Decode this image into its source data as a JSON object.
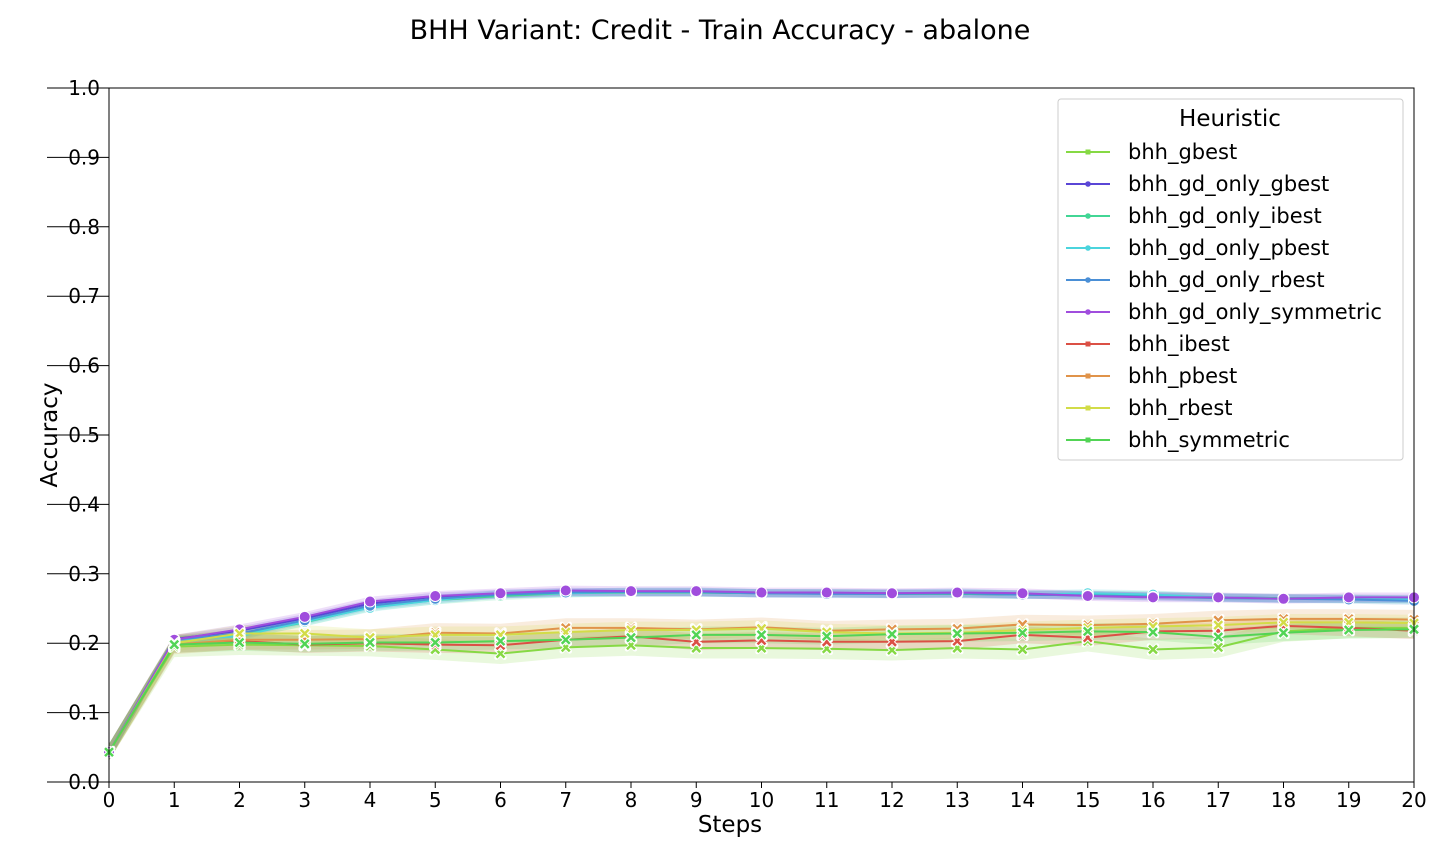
{
  "chart_data": {
    "type": "line",
    "title": "BHH Variant: Credit - Train Accuracy - abalone",
    "xlabel": "Steps",
    "ylabel": "Accuracy",
    "xlim": [
      0,
      20
    ],
    "ylim": [
      0.0,
      1.0
    ],
    "x": [
      0,
      1,
      2,
      3,
      4,
      5,
      6,
      7,
      8,
      9,
      10,
      11,
      12,
      13,
      14,
      15,
      16,
      17,
      18,
      19,
      20
    ],
    "x_ticks": [
      "0",
      "1",
      "2",
      "3",
      "4",
      "5",
      "6",
      "7",
      "8",
      "9",
      "10",
      "11",
      "12",
      "13",
      "14",
      "15",
      "16",
      "17",
      "18",
      "19",
      "20"
    ],
    "y_ticks": [
      "0.0",
      "0.1",
      "0.2",
      "0.3",
      "0.4",
      "0.5",
      "0.6",
      "0.7",
      "0.8",
      "0.9",
      "1.0"
    ],
    "grid": false,
    "legend": {
      "title": "Heuristic",
      "placement": "top-right"
    },
    "series": [
      {
        "name": "bhh_gbest",
        "color": "#86d944",
        "marker": "x",
        "band": 0.015,
        "values": [
          0.043,
          0.195,
          0.198,
          0.197,
          0.196,
          0.191,
          0.185,
          0.194,
          0.197,
          0.193,
          0.193,
          0.192,
          0.19,
          0.193,
          0.191,
          0.203,
          0.191,
          0.194,
          0.217,
          0.222,
          0.222
        ]
      },
      {
        "name": "bhh_gd_only_gbest",
        "color": "#5a46d6",
        "marker": "o",
        "band": 0.006,
        "values": [
          0.043,
          0.206,
          0.218,
          0.236,
          0.257,
          0.267,
          0.271,
          0.274,
          0.273,
          0.273,
          0.272,
          0.272,
          0.272,
          0.271,
          0.27,
          0.269,
          0.268,
          0.266,
          0.265,
          0.264,
          0.264
        ]
      },
      {
        "name": "bhh_gd_only_ibest",
        "color": "#42d695",
        "marker": "o",
        "band": 0.006,
        "values": [
          0.043,
          0.205,
          0.212,
          0.23,
          0.252,
          0.262,
          0.268,
          0.272,
          0.273,
          0.273,
          0.272,
          0.272,
          0.271,
          0.271,
          0.27,
          0.27,
          0.269,
          0.266,
          0.265,
          0.264,
          0.263
        ]
      },
      {
        "name": "bhh_gd_only_pbest",
        "color": "#4bd4dd",
        "marker": "o",
        "band": 0.006,
        "values": [
          0.043,
          0.205,
          0.21,
          0.231,
          0.251,
          0.262,
          0.271,
          0.272,
          0.274,
          0.274,
          0.272,
          0.272,
          0.271,
          0.273,
          0.27,
          0.272,
          0.27,
          0.266,
          0.264,
          0.264,
          0.263
        ]
      },
      {
        "name": "bhh_gd_only_rbest",
        "color": "#4a8fd6",
        "marker": "o",
        "band": 0.006,
        "values": [
          0.043,
          0.205,
          0.214,
          0.233,
          0.254,
          0.264,
          0.27,
          0.273,
          0.274,
          0.274,
          0.272,
          0.271,
          0.271,
          0.272,
          0.27,
          0.269,
          0.267,
          0.265,
          0.264,
          0.263,
          0.261
        ]
      },
      {
        "name": "bhh_gd_only_symmetric",
        "color": "#a04ddd",
        "marker": "o",
        "band": 0.007,
        "values": [
          0.043,
          0.205,
          0.22,
          0.238,
          0.26,
          0.268,
          0.272,
          0.276,
          0.275,
          0.275,
          0.273,
          0.273,
          0.272,
          0.273,
          0.272,
          0.268,
          0.266,
          0.266,
          0.264,
          0.266,
          0.266
        ]
      },
      {
        "name": "bhh_ibest",
        "color": "#db5045",
        "marker": "x",
        "band": 0.012,
        "values": [
          0.043,
          0.198,
          0.203,
          0.198,
          0.2,
          0.198,
          0.197,
          0.205,
          0.21,
          0.202,
          0.204,
          0.202,
          0.202,
          0.203,
          0.212,
          0.208,
          0.217,
          0.218,
          0.225,
          0.222,
          0.218
        ]
      },
      {
        "name": "bhh_pbest",
        "color": "#e0934a",
        "marker": "x",
        "band": 0.014,
        "values": [
          0.043,
          0.198,
          0.205,
          0.205,
          0.206,
          0.215,
          0.214,
          0.222,
          0.222,
          0.22,
          0.223,
          0.218,
          0.22,
          0.221,
          0.227,
          0.226,
          0.228,
          0.233,
          0.235,
          0.235,
          0.234
        ]
      },
      {
        "name": "bhh_rbest",
        "color": "#d2dc48",
        "marker": "x",
        "band": 0.012,
        "values": [
          0.043,
          0.2,
          0.214,
          0.214,
          0.208,
          0.212,
          0.212,
          0.216,
          0.219,
          0.219,
          0.221,
          0.216,
          0.214,
          0.215,
          0.219,
          0.222,
          0.224,
          0.226,
          0.23,
          0.23,
          0.229
        ]
      },
      {
        "name": "bhh_symmetric",
        "color": "#52d455",
        "marker": "x",
        "band": 0.012,
        "values": [
          0.043,
          0.198,
          0.201,
          0.199,
          0.201,
          0.201,
          0.203,
          0.205,
          0.208,
          0.212,
          0.212,
          0.21,
          0.213,
          0.214,
          0.215,
          0.217,
          0.216,
          0.209,
          0.215,
          0.219,
          0.22
        ]
      }
    ]
  }
}
